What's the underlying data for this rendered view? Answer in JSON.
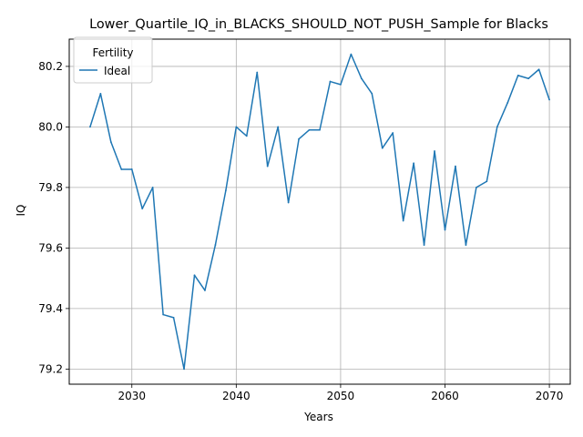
{
  "chart_data": {
    "type": "line",
    "title": "Lower_Quartile_IQ_in_BLACKS_SHOULD_NOT_PUSH_Sample for Blacks",
    "xlabel": "Years",
    "ylabel": "IQ",
    "xlim": [
      2024,
      2072
    ],
    "ylim": [
      79.15,
      80.29
    ],
    "grid": true,
    "legend": {
      "title": "Fertility",
      "position": "upper-left"
    },
    "x_ticks": [
      2030,
      2040,
      2050,
      2060,
      2070
    ],
    "y_ticks": [
      79.2,
      79.4,
      79.6,
      79.8,
      80.0,
      80.2
    ],
    "x_tick_labels": [
      "2030",
      "2040",
      "2050",
      "2060",
      "2070"
    ],
    "y_tick_labels": [
      "79.2",
      "79.4",
      "79.6",
      "79.8",
      "80.0",
      "80.2"
    ],
    "series": [
      {
        "name": "Ideal",
        "color": "#1f77b4",
        "x": [
          2026,
          2027,
          2028,
          2029,
          2030,
          2031,
          2032,
          2033,
          2034,
          2035,
          2036,
          2037,
          2038,
          2039,
          2040,
          2041,
          2042,
          2043,
          2044,
          2045,
          2046,
          2047,
          2048,
          2049,
          2050,
          2051,
          2052,
          2053,
          2054,
          2055,
          2056,
          2057,
          2058,
          2059,
          2060,
          2061,
          2062,
          2063,
          2064,
          2065,
          2066,
          2067,
          2068,
          2069,
          2070
        ],
        "values": [
          80.0,
          80.11,
          79.95,
          79.86,
          79.86,
          79.73,
          79.8,
          79.38,
          79.37,
          79.2,
          79.51,
          79.46,
          79.61,
          79.79,
          80.0,
          79.97,
          80.18,
          79.87,
          80.0,
          79.75,
          79.96,
          79.99,
          79.99,
          80.15,
          80.14,
          80.24,
          80.16,
          80.11,
          79.93,
          79.98,
          79.69,
          79.88,
          79.61,
          79.92,
          79.66,
          79.87,
          79.61,
          79.8,
          79.82,
          80.0,
          80.08,
          80.17,
          80.16,
          80.19,
          80.09
        ]
      }
    ]
  }
}
